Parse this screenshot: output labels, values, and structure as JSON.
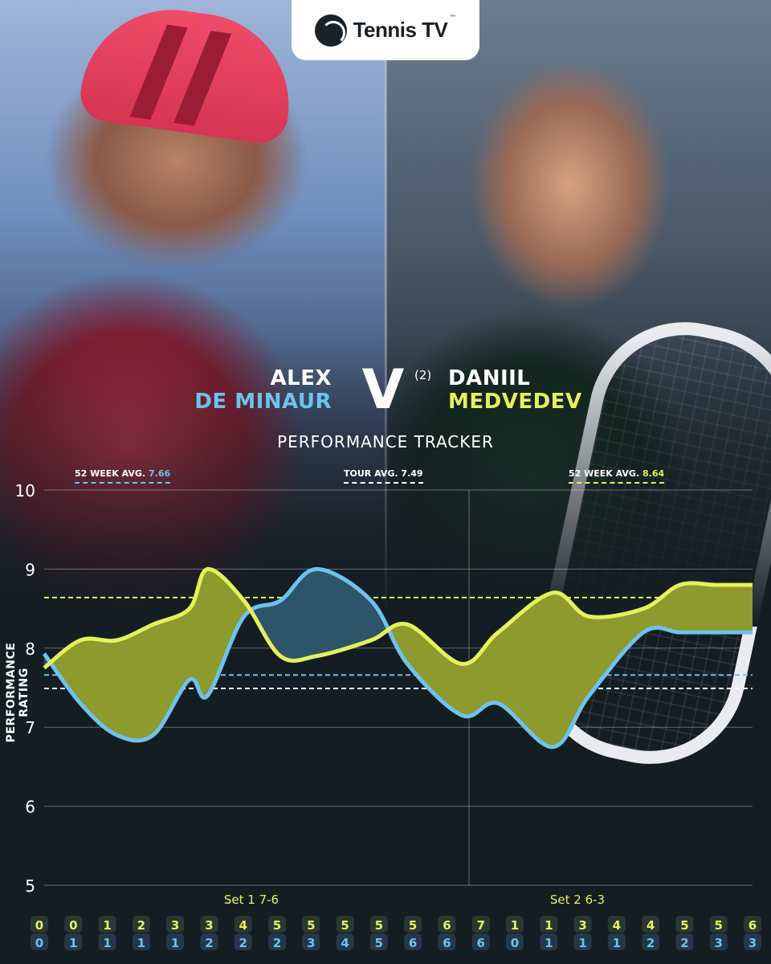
{
  "brand": {
    "logo_text": "Tennis TV",
    "logo_icon": "tennis-ball-icon"
  },
  "matchup": {
    "player1": {
      "first_name": "ALEX",
      "last_name": "DE MINAUR",
      "color": "#6cc3ee"
    },
    "player2": {
      "first_name": "DANIIL",
      "last_name": "MEDVEDEV",
      "seed": "(2)",
      "color": "#e4f15a"
    },
    "versus": "V"
  },
  "title": "PERFORMANCE TRACKER",
  "averages": {
    "player1": {
      "label": "52 WEEK AVG.",
      "value": "7.66"
    },
    "tour": {
      "label": "TOUR AVG.",
      "value": "7.49"
    },
    "player2": {
      "label": "52 WEEK AVG.",
      "value": "8.64"
    }
  },
  "chart_data": {
    "type": "area",
    "ylabel": "PERFORMANCE RATING",
    "ylim": [
      5,
      10
    ],
    "yticks": [
      5,
      6,
      7,
      8,
      9,
      10
    ],
    "reference_lines": [
      {
        "value": 7.66,
        "color": "#6cc3ee"
      },
      {
        "value": 7.49,
        "color": "#ffffff"
      },
      {
        "value": 8.64,
        "color": "#e4f15a"
      }
    ],
    "sets": [
      {
        "label": "Set 1 7-6",
        "start_index": 0,
        "end_index": 13
      },
      {
        "label": "Set 2 6-3",
        "start_index": 14,
        "end_index": 22
      }
    ],
    "games": {
      "player2_score": [
        "0",
        "0",
        "1",
        "2",
        "3",
        "3",
        "4",
        "5",
        "5",
        "5",
        "5",
        "5",
        "6",
        "7",
        "1",
        "1",
        "3",
        "4",
        "4",
        "5",
        "5",
        "6"
      ],
      "player1_score": [
        "0",
        "1",
        "1",
        "1",
        "1",
        "2",
        "2",
        "2",
        "3",
        "4",
        "5",
        "6",
        "6",
        "6",
        "0",
        "1",
        "1",
        "1",
        "2",
        "2",
        "3",
        "3"
      ]
    },
    "series": [
      {
        "name": "DE MINAUR",
        "color": "#6cc3ee",
        "values": [
          7.93,
          7.3,
          6.9,
          6.9,
          7.6,
          7.4,
          8.4,
          8.6,
          9.0,
          8.6,
          7.8,
          7.15,
          7.3,
          6.75,
          7.4,
          8.2,
          8.2,
          8.2,
          8.2
        ]
      },
      {
        "name": "MEDVEDEV",
        "color": "#e4f15a",
        "values": [
          7.75,
          8.1,
          8.1,
          8.3,
          8.5,
          9.0,
          8.6,
          7.9,
          7.9,
          8.1,
          8.3,
          7.8,
          8.2,
          8.7,
          8.4,
          8.5,
          8.8,
          8.8,
          8.8
        ]
      }
    ],
    "series_x_games": [
      0,
      2,
      4,
      6,
      8,
      9,
      11,
      13,
      15,
      18,
      20,
      23,
      25,
      28,
      30,
      33,
      35,
      37,
      39
    ]
  }
}
